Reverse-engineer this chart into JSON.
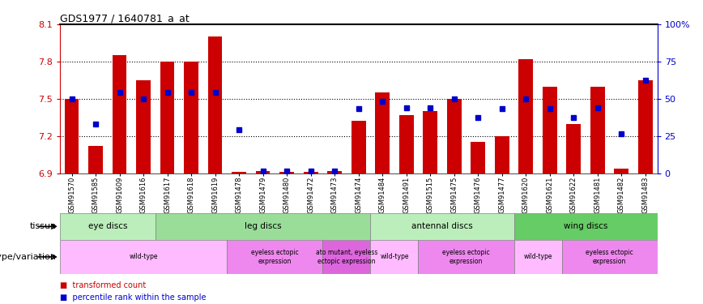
{
  "title": "GDS1977 / 1640781_a_at",
  "samples": [
    "GSM91570",
    "GSM91585",
    "GSM91609",
    "GSM91616",
    "GSM91617",
    "GSM91618",
    "GSM91619",
    "GSM91478",
    "GSM91479",
    "GSM91480",
    "GSM91472",
    "GSM91473",
    "GSM91474",
    "GSM91484",
    "GSM91491",
    "GSM91515",
    "GSM91475",
    "GSM91476",
    "GSM91477",
    "GSM91620",
    "GSM91621",
    "GSM91622",
    "GSM91481",
    "GSM91482",
    "GSM91483"
  ],
  "bar_values": [
    7.5,
    7.12,
    7.85,
    7.65,
    7.8,
    7.8,
    8.0,
    6.91,
    6.92,
    6.91,
    6.91,
    6.92,
    7.32,
    7.55,
    7.37,
    7.4,
    7.5,
    7.15,
    7.2,
    7.82,
    7.6,
    7.3,
    7.6,
    6.94,
    7.65
  ],
  "dot_values": [
    7.5,
    7.3,
    7.55,
    7.5,
    7.55,
    7.55,
    7.55,
    7.25,
    6.92,
    6.92,
    6.92,
    6.92,
    7.42,
    7.48,
    7.43,
    7.43,
    7.5,
    7.35,
    7.42,
    7.5,
    7.42,
    7.35,
    7.43,
    7.22,
    7.65
  ],
  "ylim": [
    6.9,
    8.1
  ],
  "yticks": [
    6.9,
    7.2,
    7.5,
    7.8,
    8.1
  ],
  "bar_color": "#cc0000",
  "dot_color": "#0000cc",
  "bar_base": 6.9,
  "tissue_groups": [
    {
      "label": "eye discs",
      "start": 0,
      "end": 4,
      "color": "#bbeebb"
    },
    {
      "label": "leg discs",
      "start": 4,
      "end": 13,
      "color": "#99dd99"
    },
    {
      "label": "antennal discs",
      "start": 13,
      "end": 19,
      "color": "#bbeebb"
    },
    {
      "label": "wing discs",
      "start": 19,
      "end": 25,
      "color": "#66cc66"
    }
  ],
  "genotype_groups": [
    {
      "label": "wild-type",
      "start": 0,
      "end": 7,
      "color": "#ffbbff"
    },
    {
      "label": "eyeless ectopic\nexpression",
      "start": 7,
      "end": 11,
      "color": "#ee88ee"
    },
    {
      "label": "ato mutant, eyeless\nectopic expression",
      "start": 11,
      "end": 13,
      "color": "#dd66dd"
    },
    {
      "label": "wild-type",
      "start": 13,
      "end": 15,
      "color": "#ffbbff"
    },
    {
      "label": "eyeless ectopic\nexpression",
      "start": 15,
      "end": 19,
      "color": "#ee88ee"
    },
    {
      "label": "wild-type",
      "start": 19,
      "end": 21,
      "color": "#ffbbff"
    },
    {
      "label": "eyeless ectopic\nexpression",
      "start": 21,
      "end": 25,
      "color": "#ee88ee"
    }
  ],
  "right_yticks_pct": [
    0,
    25,
    50,
    75,
    100
  ],
  "right_ylabels": [
    "0",
    "25",
    "50",
    "75",
    "100%"
  ],
  "background_color": "#ffffff",
  "grid_lines": [
    7.2,
    7.5,
    7.8
  ]
}
